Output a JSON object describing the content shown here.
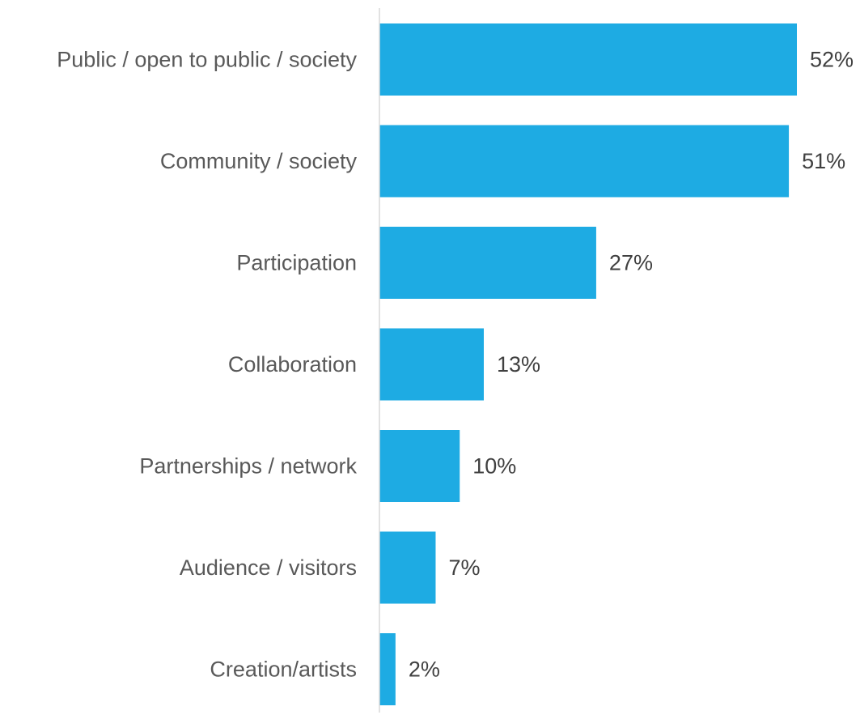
{
  "chart_data": {
    "type": "bar",
    "orientation": "horizontal",
    "categories": [
      "Public / open to public / society",
      "Community / society",
      "Participation",
      "Collaboration",
      "Partnerships / network",
      "Audience / visitors",
      "Creation/artists"
    ],
    "values": [
      52,
      51,
      27,
      13,
      10,
      7,
      2
    ],
    "value_labels": [
      "52%",
      "51%",
      "27%",
      "13%",
      "10%",
      "7%",
      "2%"
    ],
    "unit": "%",
    "xlim": [
      0,
      52
    ],
    "grid": false,
    "legend": "none",
    "bar_color": "#1EABE3",
    "axis_color": "#D9D9D9"
  }
}
